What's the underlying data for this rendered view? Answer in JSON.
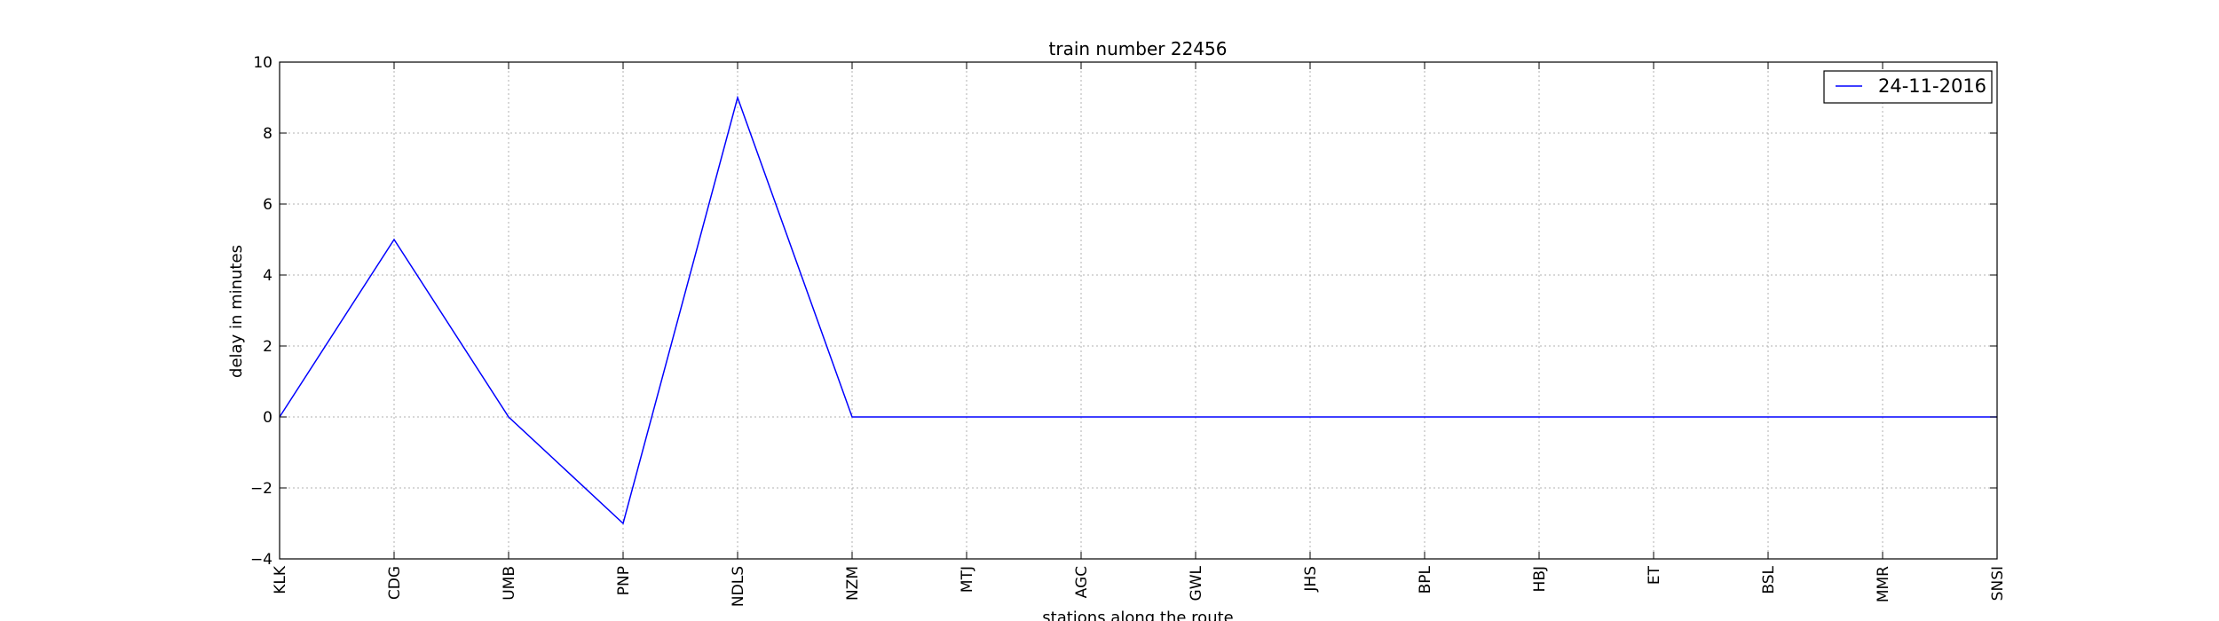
{
  "chart_data": {
    "type": "line",
    "title": "train number 22456",
    "xlabel": "stations along the route",
    "ylabel": "delay in minutes",
    "categories": [
      "KLK",
      "CDG",
      "UMB",
      "PNP",
      "NDLS",
      "NZM",
      "MTJ",
      "AGC",
      "GWL",
      "JHS",
      "BPL",
      "HBJ",
      "ET",
      "BSL",
      "MMR",
      "SNSI"
    ],
    "series": [
      {
        "name": "24-11-2016",
        "color": "#0000ff",
        "values": [
          0,
          5,
          0,
          -3,
          9,
          0,
          0,
          0,
          0,
          0,
          0,
          0,
          0,
          0,
          0,
          0
        ]
      }
    ],
    "ylim": [
      -4,
      10
    ],
    "yticks": [
      -4,
      -2,
      0,
      2,
      4,
      6,
      8,
      10
    ],
    "ytick_labels": [
      "−4",
      "−2",
      "0",
      "2",
      "4",
      "6",
      "8",
      "10"
    ],
    "grid": true,
    "legend_position": "top-right"
  }
}
